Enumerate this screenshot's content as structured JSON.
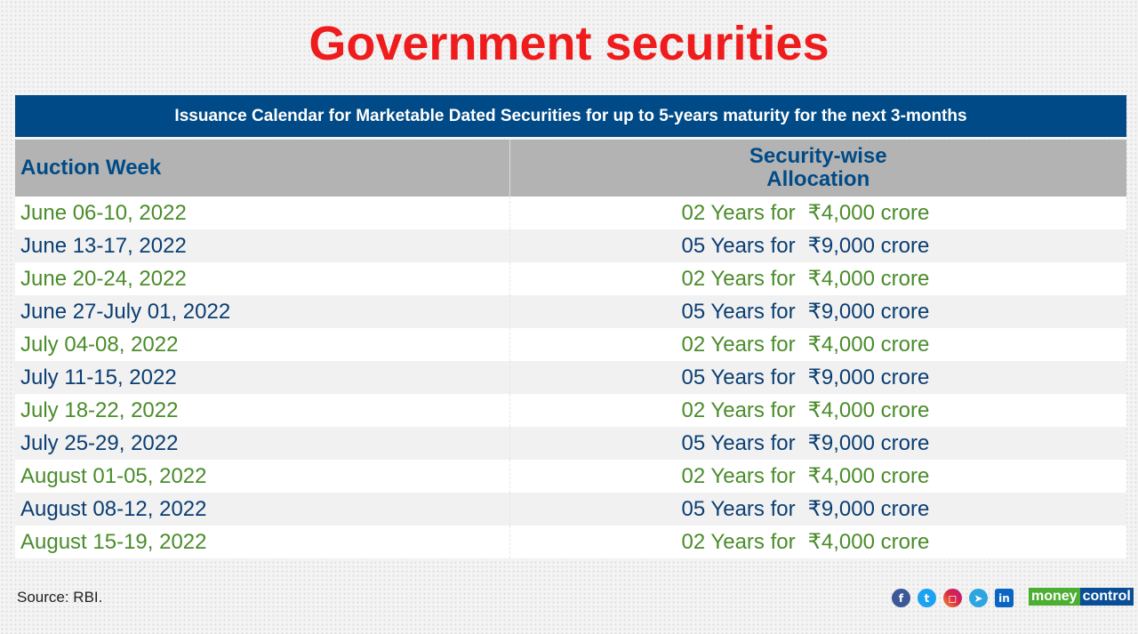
{
  "title": "Government securities",
  "banner": "Issuance Calendar for Marketable Dated Securities for up to 5-years maturity for the next 3-months",
  "headers": {
    "auction_week": "Auction Week",
    "allocation_line1": "Security-wise",
    "allocation_line2": "Allocation"
  },
  "rows": [
    {
      "week": "June 06-10, 2022",
      "tenor": "02 Years for",
      "amount": "₹4,000 crore",
      "color": "green"
    },
    {
      "week": "June 13-17, 2022",
      "tenor": "05 Years for",
      "amount": "₹9,000 crore",
      "color": "blue"
    },
    {
      "week": "June 20-24, 2022",
      "tenor": "02 Years for",
      "amount": "₹4,000 crore",
      "color": "green"
    },
    {
      "week": "June 27-July 01, 2022",
      "tenor": "05 Years for",
      "amount": "₹9,000 crore",
      "color": "blue"
    },
    {
      "week": "July 04-08, 2022",
      "tenor": "02 Years for",
      "amount": "₹4,000 crore",
      "color": "green"
    },
    {
      "week": "July 11-15, 2022",
      "tenor": "05 Years for",
      "amount": "₹9,000 crore",
      "color": "blue"
    },
    {
      "week": "July 18-22, 2022",
      "tenor": "02 Years for",
      "amount": "₹4,000 crore",
      "color": "green"
    },
    {
      "week": "July 25-29, 2022",
      "tenor": "05 Years for",
      "amount": "₹9,000 crore",
      "color": "blue"
    },
    {
      "week": "August 01-05, 2022",
      "tenor": "02 Years for",
      "amount": "₹4,000 crore",
      "color": "green"
    },
    {
      "week": "August 08-12, 2022",
      "tenor": "05 Years for",
      "amount": "₹9,000 crore",
      "color": "blue"
    },
    {
      "week": "August 15-19, 2022",
      "tenor": "02 Years for",
      "amount": "₹4,000 crore",
      "color": "green"
    }
  ],
  "source": "Source: RBI.",
  "social": [
    "facebook-icon",
    "twitter-icon",
    "instagram-icon",
    "telegram-icon",
    "linkedin-icon"
  ],
  "logo": {
    "part1": "money",
    "part2": "control"
  },
  "colors": {
    "title": "#ee1c1c",
    "banner": "#004b87",
    "green": "#4a8c2a",
    "blue": "#0b3e72"
  }
}
